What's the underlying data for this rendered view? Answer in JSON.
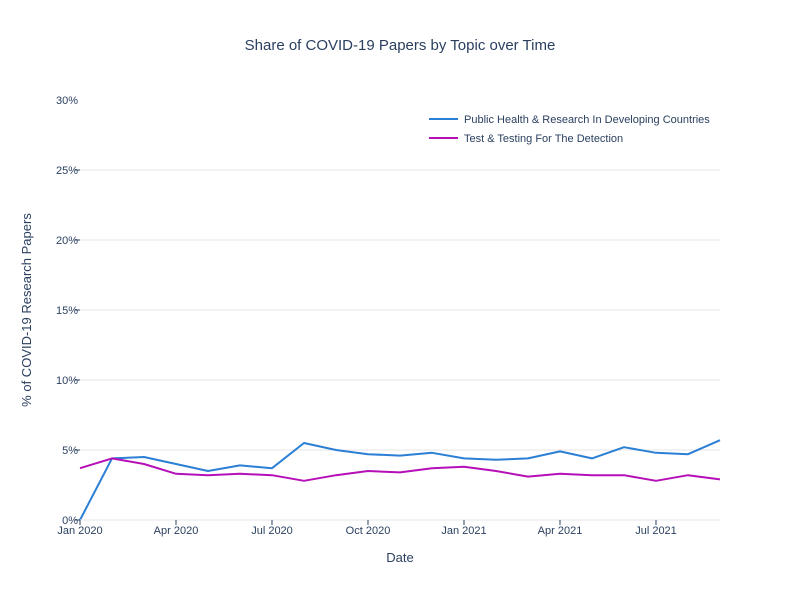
{
  "chart_data": {
    "type": "line",
    "title": "Share of COVID-19 Papers by Topic over Time",
    "xlabel": "Date",
    "ylabel": "% of COVID-19 Research Papers",
    "ylim": [
      0,
      30
    ],
    "yticks": [
      "0%",
      "5%",
      "10%",
      "15%",
      "20%",
      "25%",
      "30%"
    ],
    "ytick_values": [
      0,
      5,
      10,
      15,
      20,
      25,
      30
    ],
    "xticks": [
      "Jan 2020",
      "Apr 2020",
      "Jul 2020",
      "Oct 2020",
      "Jan 2021",
      "Apr 2021",
      "Jul 2021"
    ],
    "xtick_index": [
      0,
      3,
      6,
      9,
      12,
      15,
      18
    ],
    "x": [
      "2020-01",
      "2020-02",
      "2020-03",
      "2020-04",
      "2020-05",
      "2020-06",
      "2020-07",
      "2020-08",
      "2020-09",
      "2020-10",
      "2020-11",
      "2020-12",
      "2021-01",
      "2021-02",
      "2021-03",
      "2021-04",
      "2021-05",
      "2021-06",
      "2021-07",
      "2021-08",
      "2021-09"
    ],
    "grid": true,
    "legend_position": "top-right",
    "series": [
      {
        "name": "Public Health & Research In Developing Countries",
        "color": "#2b7fd4",
        "values": [
          0,
          4.4,
          4.5,
          4.0,
          3.5,
          3.9,
          3.7,
          5.5,
          5.0,
          4.7,
          4.6,
          4.8,
          4.4,
          4.3,
          4.4,
          4.9,
          4.4,
          5.2,
          4.8,
          4.7,
          5.7
        ]
      },
      {
        "name": "Test & Testing For The Detection",
        "color": "#b50fb8",
        "values": [
          3.7,
          4.4,
          4.0,
          3.3,
          3.2,
          3.3,
          3.2,
          2.8,
          3.2,
          3.5,
          3.4,
          3.7,
          3.8,
          3.5,
          3.1,
          3.3,
          3.2,
          3.2,
          2.8,
          3.2,
          2.9
        ]
      }
    ]
  }
}
